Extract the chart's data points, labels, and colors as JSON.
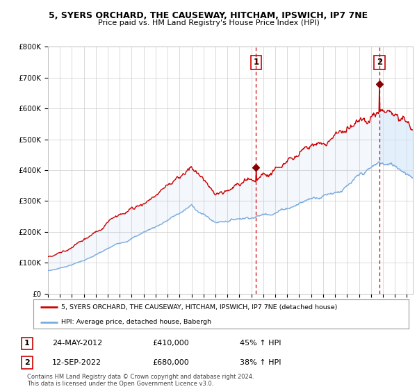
{
  "title": "5, SYERS ORCHARD, THE CAUSEWAY, HITCHAM, IPSWICH, IP7 7NE",
  "subtitle": "Price paid vs. HM Land Registry's House Price Index (HPI)",
  "legend_line1": "5, SYERS ORCHARD, THE CAUSEWAY, HITCHAM, IPSWICH, IP7 7NE (detached house)",
  "legend_line2": "HPI: Average price, detached house, Babergh",
  "annotation1_label": "1",
  "annotation1_date": "24-MAY-2012",
  "annotation1_price": "£410,000",
  "annotation1_hpi": "45% ↑ HPI",
  "annotation2_label": "2",
  "annotation2_date": "12-SEP-2022",
  "annotation2_price": "£680,000",
  "annotation2_hpi": "38% ↑ HPI",
  "footer": "Contains HM Land Registry data © Crown copyright and database right 2024.\nThis data is licensed under the Open Government Licence v3.0.",
  "sale1_year": 2012.39,
  "sale1_value": 410000,
  "sale2_year": 2022.71,
  "sale2_value": 680000,
  "hpi_color": "#7aaadd",
  "price_color": "#cc0000",
  "background_color": "#ffffff",
  "grid_color": "#cccccc",
  "ylim": [
    0,
    800000
  ],
  "xlim_start": 1995.0,
  "xlim_end": 2025.5,
  "fill_color": "#ddeeff",
  "fill_alpha": 0.5
}
